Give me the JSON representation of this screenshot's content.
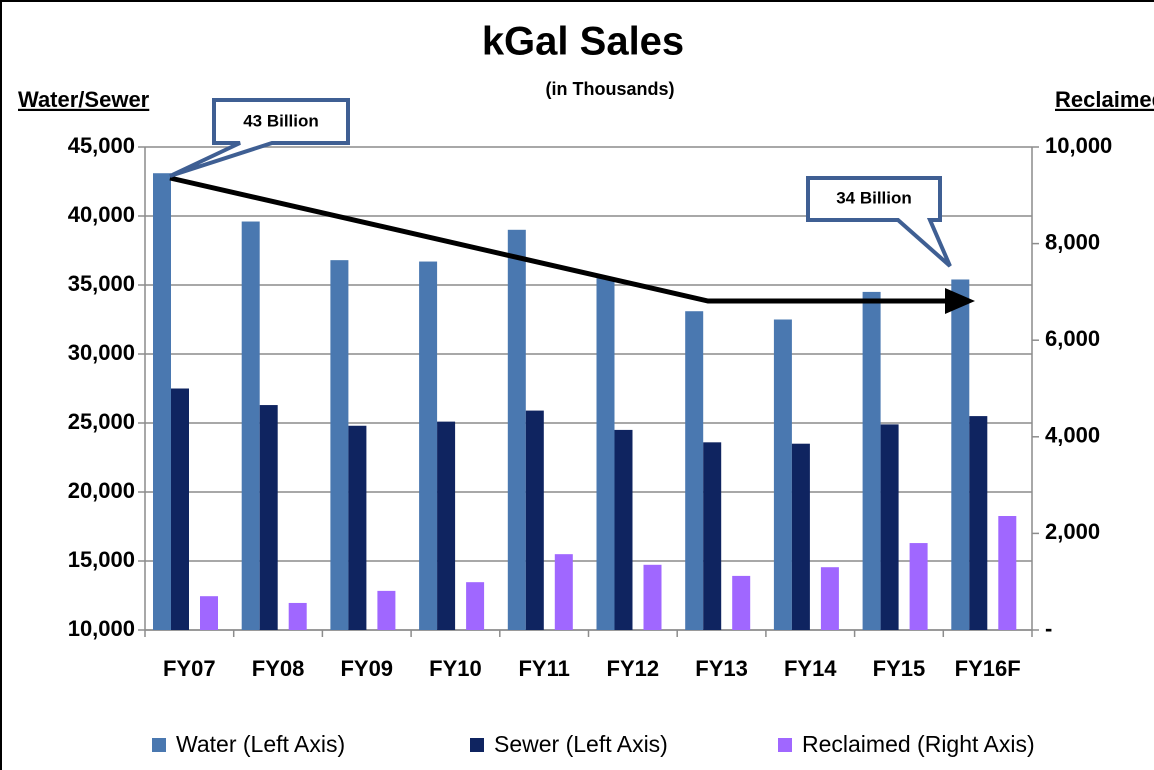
{
  "chart_data": {
    "type": "bar",
    "title": "kGal Sales",
    "subtitle": "(in Thousands)",
    "y_label": "Water/Sewer",
    "y2_label": "Reclaimed",
    "annotations": [
      "43 Billion",
      "34 Billion"
    ],
    "categories": [
      "FY07",
      "FY08",
      "FY09",
      "FY10",
      "FY11",
      "FY12",
      "FY13",
      "FY14",
      "FY15",
      "FY16F"
    ],
    "series": [
      {
        "name": "Water (Left Axis)",
        "color": "#4a78b0",
        "values": [
          43100,
          39600,
          36800,
          36700,
          39000,
          35500,
          33100,
          32500,
          34500,
          35400
        ]
      },
      {
        "name": "Sewer (Left Axis)",
        "color": "#0f2460",
        "values": [
          27500,
          26300,
          24800,
          25100,
          25900,
          24500,
          23600,
          23500,
          24900,
          25500
        ]
      },
      {
        "name": "Reclaimed (Right Axis)",
        "color": "#a067ff",
        "axis": "y2",
        "values": [
          700,
          560,
          810,
          990,
          1570,
          1350,
          1120,
          1300,
          1800,
          2360
        ]
      }
    ],
    "ylim": [
      10000,
      45000
    ],
    "yticks": [
      {
        "value": 10000,
        "label": "10,000"
      },
      {
        "value": 15000,
        "label": "15,000"
      },
      {
        "value": 20000,
        "label": "20,000"
      },
      {
        "value": 25000,
        "label": "25,000"
      },
      {
        "value": 30000,
        "label": "30,000"
      },
      {
        "value": 35000,
        "label": "35,000"
      },
      {
        "value": 40000,
        "label": "40,000"
      },
      {
        "value": 45000,
        "label": "45,000"
      }
    ],
    "y2lim": [
      0,
      10000
    ],
    "y2ticks": [
      {
        "value": 0,
        "label": "-"
      },
      {
        "value": 2000,
        "label": "2,000"
      },
      {
        "value": 4000,
        "label": "4,000"
      },
      {
        "value": 6000,
        "label": "6,000"
      },
      {
        "value": 8000,
        "label": "8,000"
      },
      {
        "value": 10000,
        "label": "10,000"
      }
    ],
    "grid": true,
    "legend": "bottom"
  }
}
